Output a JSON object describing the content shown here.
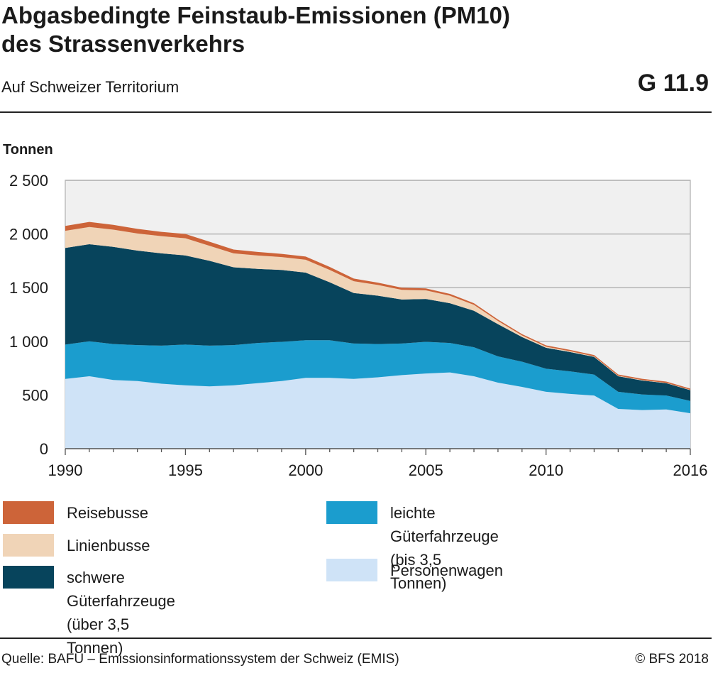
{
  "header": {
    "title_line1": "Abgasbedingte Feinstaub-Emissionen (PM10)",
    "title_line2": "des Strassenverkehrs",
    "subtitle": "Auf Schweizer Territorium",
    "code": "G 11.9"
  },
  "footer": {
    "source": "Quelle: BAFU – Emissionsinformationssystem der Schweiz (EMIS)",
    "copyright": "© BFS 2018"
  },
  "chart_data": {
    "type": "area",
    "stacked": true,
    "ylabel": "Tonnen",
    "ylim": [
      0,
      2500
    ],
    "yticks": [
      0,
      500,
      1000,
      1500,
      2000,
      2500
    ],
    "ytick_labels": [
      "0",
      "500",
      "1 000",
      "1 500",
      "2 000",
      "2 500"
    ],
    "xlim": [
      1990,
      2016
    ],
    "xtick_labels": [
      "1990",
      "1995",
      "2000",
      "2005",
      "2010",
      "2016"
    ],
    "grid": true,
    "x": [
      1990,
      1991,
      1992,
      1993,
      1994,
      1995,
      1996,
      1997,
      1998,
      1999,
      2000,
      2001,
      2002,
      2003,
      2004,
      2005,
      2006,
      2007,
      2008,
      2009,
      2010,
      2011,
      2012,
      2013,
      2014,
      2015,
      2016
    ],
    "series": [
      {
        "name": "Personenwagen",
        "color": "#cfe3f7",
        "values": [
          650,
          675,
          640,
          630,
          605,
          590,
          580,
          590,
          610,
          630,
          660,
          660,
          650,
          665,
          685,
          700,
          710,
          675,
          615,
          575,
          530,
          510,
          495,
          370,
          360,
          365,
          330
        ]
      },
      {
        "name": "leichte Güterfahrzeuge\n(bis 3,5 Tonnen)",
        "color": "#1b9dce",
        "values": [
          320,
          325,
          335,
          335,
          355,
          380,
          380,
          375,
          375,
          365,
          350,
          350,
          330,
          310,
          295,
          295,
          275,
          270,
          245,
          235,
          215,
          210,
          195,
          160,
          145,
          130,
          115
        ]
      },
      {
        "name": "schwere Güterfahrzeuge\n(über 3,5 Tonnen)",
        "color": "#07445c",
        "values": [
          900,
          905,
          905,
          880,
          860,
          830,
          790,
          725,
          690,
          670,
          630,
          540,
          470,
          450,
          410,
          400,
          370,
          340,
          300,
          230,
          195,
          180,
          165,
          145,
          130,
          115,
          100
        ]
      },
      {
        "name": "Linienbusse",
        "color": "#f0d4b7",
        "values": [
          160,
          160,
          160,
          160,
          160,
          160,
          140,
          130,
          125,
          120,
          120,
          115,
          110,
          100,
          90,
          80,
          70,
          55,
          30,
          15,
          10,
          8,
          5,
          4,
          4,
          3,
          3
        ]
      },
      {
        "name": "Reisebusse",
        "color": "#cd6439",
        "values": [
          45,
          47,
          45,
          43,
          40,
          40,
          38,
          35,
          33,
          30,
          30,
          28,
          25,
          22,
          20,
          18,
          17,
          15,
          13,
          12,
          12,
          12,
          12,
          12,
          12,
          12,
          12
        ]
      }
    ]
  }
}
